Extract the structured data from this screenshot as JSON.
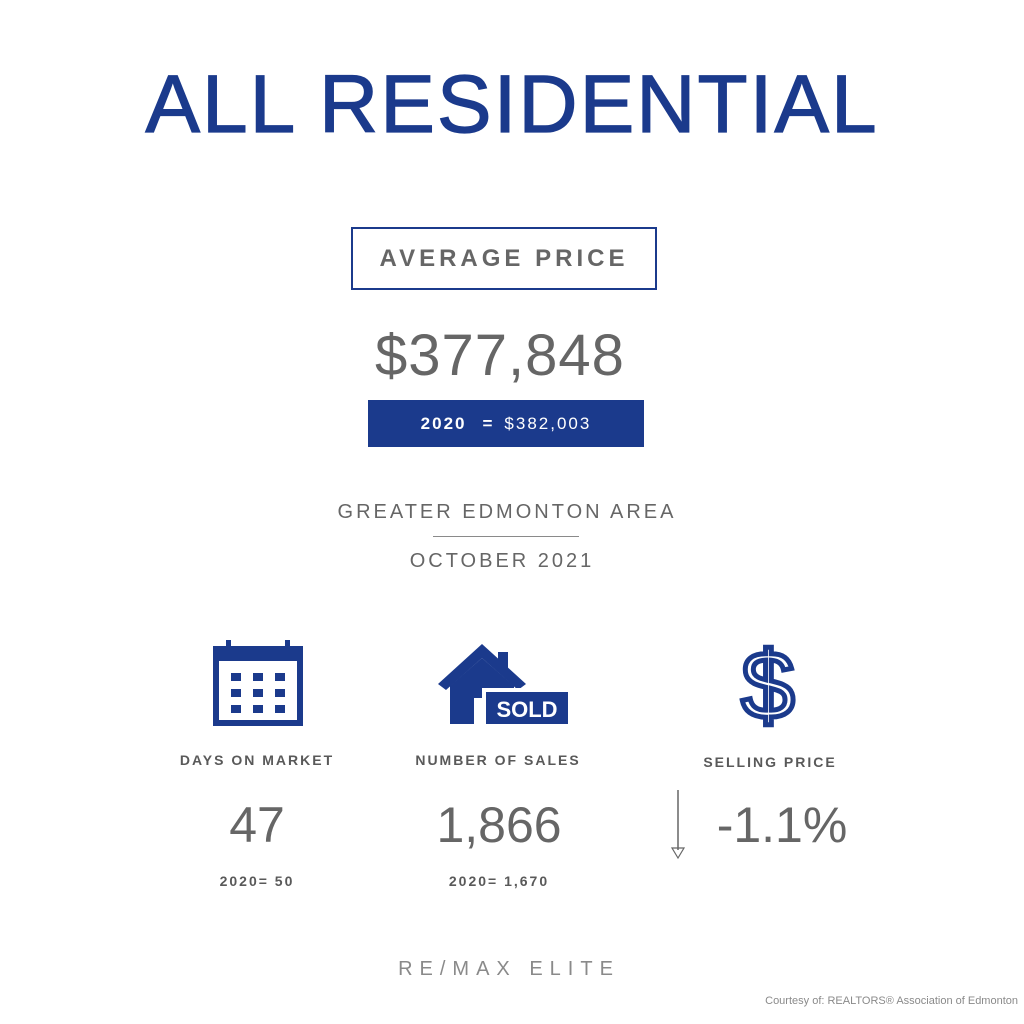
{
  "colors": {
    "brand_blue": "#1b3a8c",
    "text_gray": "#666666",
    "label_gray": "#595959",
    "light_gray": "#8a8a8a",
    "white": "#ffffff"
  },
  "title": "ALL RESIDENTIAL",
  "average_price": {
    "label": "AVERAGE PRICE",
    "value": "$377,848",
    "compare_year": "2020",
    "compare_equals": "=",
    "compare_value": "$382,003"
  },
  "region": {
    "area": "GREATER EDMONTON AREA",
    "period": "OCTOBER 2021"
  },
  "stats": {
    "days_on_market": {
      "icon": "calendar-icon",
      "label": "DAYS ON MARKET",
      "value": "47",
      "previous": "2020= 50"
    },
    "number_of_sales": {
      "icon": "house-sold-icon",
      "label": "NUMBER OF SALES",
      "value": "1,866",
      "previous": "2020= 1,670",
      "sign_text": "SOLD"
    },
    "selling_price": {
      "icon": "dollar-icon",
      "label": "SELLING PRICE",
      "value": "-1.1%",
      "trend_icon": "down-arrow-icon",
      "glyph": "$"
    }
  },
  "footer": {
    "brand": "RE/MAX ELITE",
    "credit": "Courtesy of:  REALTORS® Association of Edmonton"
  }
}
